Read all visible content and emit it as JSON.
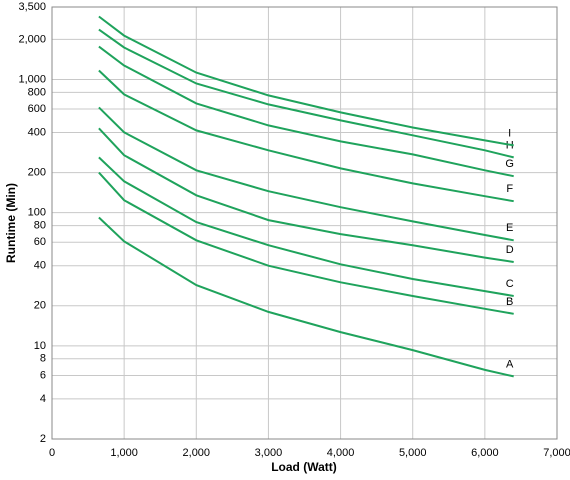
{
  "chart_data": {
    "type": "line",
    "x_label": "Load (Watt)",
    "y_label": "Runtime (Min)",
    "x": [
      650,
      1000,
      2000,
      3000,
      4000,
      5000,
      6000,
      6400
    ],
    "series": [
      {
        "name": "A",
        "color": "#1fa35c",
        "values": [
          92,
          61,
          28.6,
          18,
          12.7,
          9.3,
          6.6,
          5.9
        ]
      },
      {
        "name": "B",
        "color": "#1fa35c",
        "values": [
          200,
          124,
          62,
          40,
          30,
          23.7,
          19,
          17.4
        ]
      },
      {
        "name": "C",
        "color": "#1fa35c",
        "values": [
          260,
          172,
          85,
          57,
          41,
          31.8,
          25.8,
          23.7
        ]
      },
      {
        "name": "D",
        "color": "#1fa35c",
        "values": [
          430,
          270,
          135,
          88,
          69,
          57,
          46,
          42.6
        ]
      },
      {
        "name": "E",
        "color": "#1fa35c",
        "values": [
          617,
          401,
          208,
          145,
          110,
          86,
          68,
          62
        ]
      },
      {
        "name": "F",
        "color": "#1fa35c",
        "values": [
          1167,
          773,
          415,
          294,
          215,
          166,
          133,
          122
        ]
      },
      {
        "name": "G",
        "color": "#1fa35c",
        "values": [
          1766,
          1273,
          661,
          452,
          343,
          274,
          208,
          188
        ]
      },
      {
        "name": "H",
        "color": "#1fa35c",
        "values": [
          2370,
          1738,
          933,
          650,
          493,
          381,
          294,
          260
        ]
      },
      {
        "name": "I",
        "color": "#1fa35c",
        "values": [
          2968,
          2136,
          1127,
          759,
          566,
          436,
          349,
          320
        ]
      }
    ],
    "xlim": [
      0,
      7000
    ],
    "xticks": [
      0,
      {
        "value": 1000,
        "label": "1,000"
      },
      {
        "value": 2000,
        "label": "2,000"
      },
      {
        "value": 3000,
        "label": "3,000"
      },
      {
        "value": 4000,
        "label": "4,000"
      },
      {
        "value": 5000,
        "label": "5,000"
      },
      {
        "value": 6000,
        "label": "6,000"
      },
      {
        "value": 7000,
        "label": "7,000"
      }
    ],
    "ylim": [
      2,
      3500
    ],
    "yticks": [
      2,
      4,
      6,
      8,
      10,
      20,
      40,
      60,
      80,
      100,
      200,
      400,
      600,
      800,
      {
        "value": 1000,
        "label": "1,000"
      },
      {
        "value": 2000,
        "label": "2,000"
      },
      {
        "value": 3500,
        "label": "3,500"
      }
    ],
    "y_scale": "log",
    "grid": true
  }
}
